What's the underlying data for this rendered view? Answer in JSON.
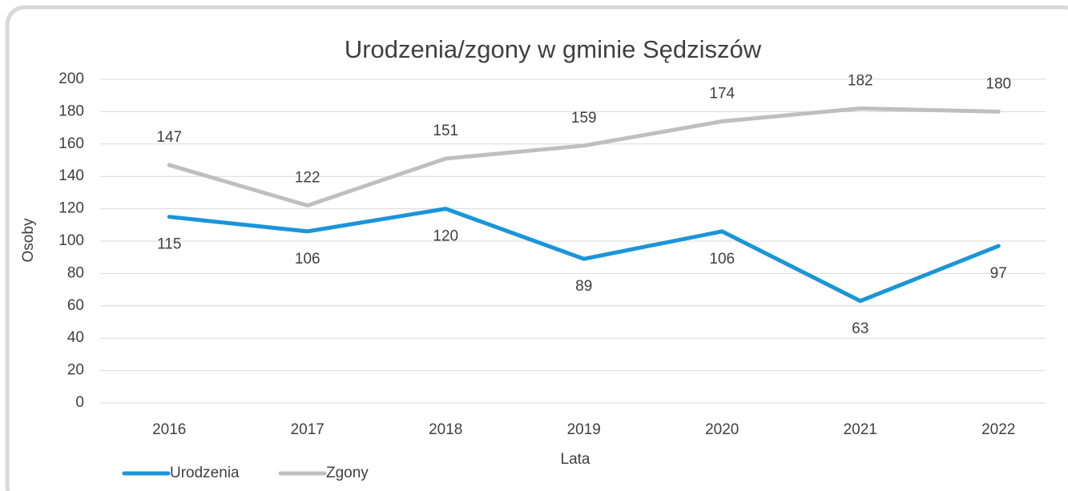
{
  "chart_data": {
    "type": "line",
    "title": "Urodzenia/zgony w gminie Sędziszów",
    "x_label": "Lata",
    "y_label": "Osoby",
    "categories": [
      "2016",
      "2017",
      "2018",
      "2019",
      "2020",
      "2021",
      "2022"
    ],
    "series": [
      {
        "name": "Urodzenia",
        "color": "#1b95d9",
        "values": [
          115,
          106,
          120,
          89,
          106,
          63,
          97
        ]
      },
      {
        "name": "Zgony",
        "color": "#bfbfbf",
        "values": [
          147,
          122,
          151,
          159,
          174,
          182,
          180
        ]
      }
    ],
    "ylim": [
      0,
      200
    ],
    "yticks": [
      0,
      20,
      40,
      60,
      80,
      100,
      120,
      140,
      160,
      180,
      200
    ],
    "grid": true,
    "legend": "bottom"
  }
}
